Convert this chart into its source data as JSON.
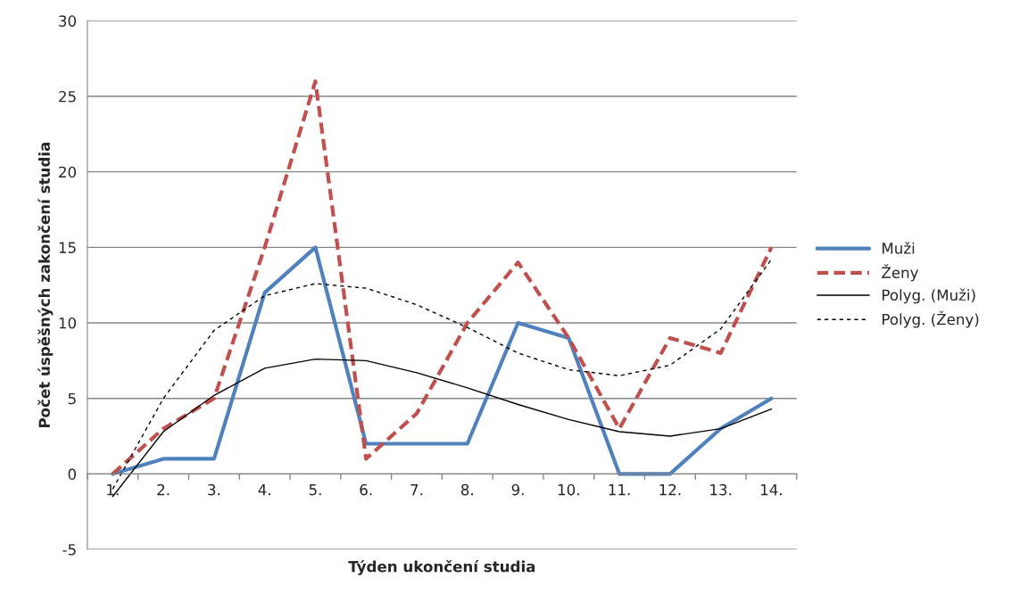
{
  "chart_data": {
    "type": "line",
    "xlabel": "Týden ukončení studia",
    "ylabel": "Počet úspěšných zakončení studia",
    "categories": [
      "1.",
      "2.",
      "3.",
      "4.",
      "5.",
      "6.",
      "7.",
      "8.",
      "9.",
      "10.",
      "11.",
      "12.",
      "13.",
      "14."
    ],
    "ylim": [
      -5,
      30
    ],
    "yticks": [
      -5,
      0,
      5,
      10,
      15,
      20,
      25,
      30
    ],
    "grid": "y",
    "legend": "right",
    "marker": "none",
    "series": [
      {
        "name": "Muži",
        "color": "#4f81bd",
        "line_style": "solid",
        "values": [
          0,
          1,
          1,
          12,
          15,
          2,
          2,
          2,
          10,
          9,
          0,
          0,
          3,
          5
        ]
      },
      {
        "name": "Ženy",
        "color": "#c0504d",
        "line_style": "dashed",
        "values": [
          0,
          3,
          5,
          15,
          26,
          1,
          4,
          10,
          14,
          9,
          3,
          9,
          8,
          15
        ]
      },
      {
        "name": "Polyg. (Muži)",
        "color": "#000000",
        "line_style": "solid",
        "values": [
          -1.5,
          2.8,
          5.2,
          7,
          7.6,
          7.5,
          6.7,
          5.7,
          4.6,
          3.6,
          2.8,
          2.5,
          3,
          4.3
        ]
      },
      {
        "name": "Polyg. (Ženy)",
        "color": "#000000",
        "line_style": "dashed",
        "values": [
          -1,
          5,
          9.5,
          11.8,
          12.6,
          12.3,
          11.2,
          9.7,
          8,
          6.9,
          6.5,
          7.2,
          9.6,
          14.2
        ]
      }
    ]
  }
}
